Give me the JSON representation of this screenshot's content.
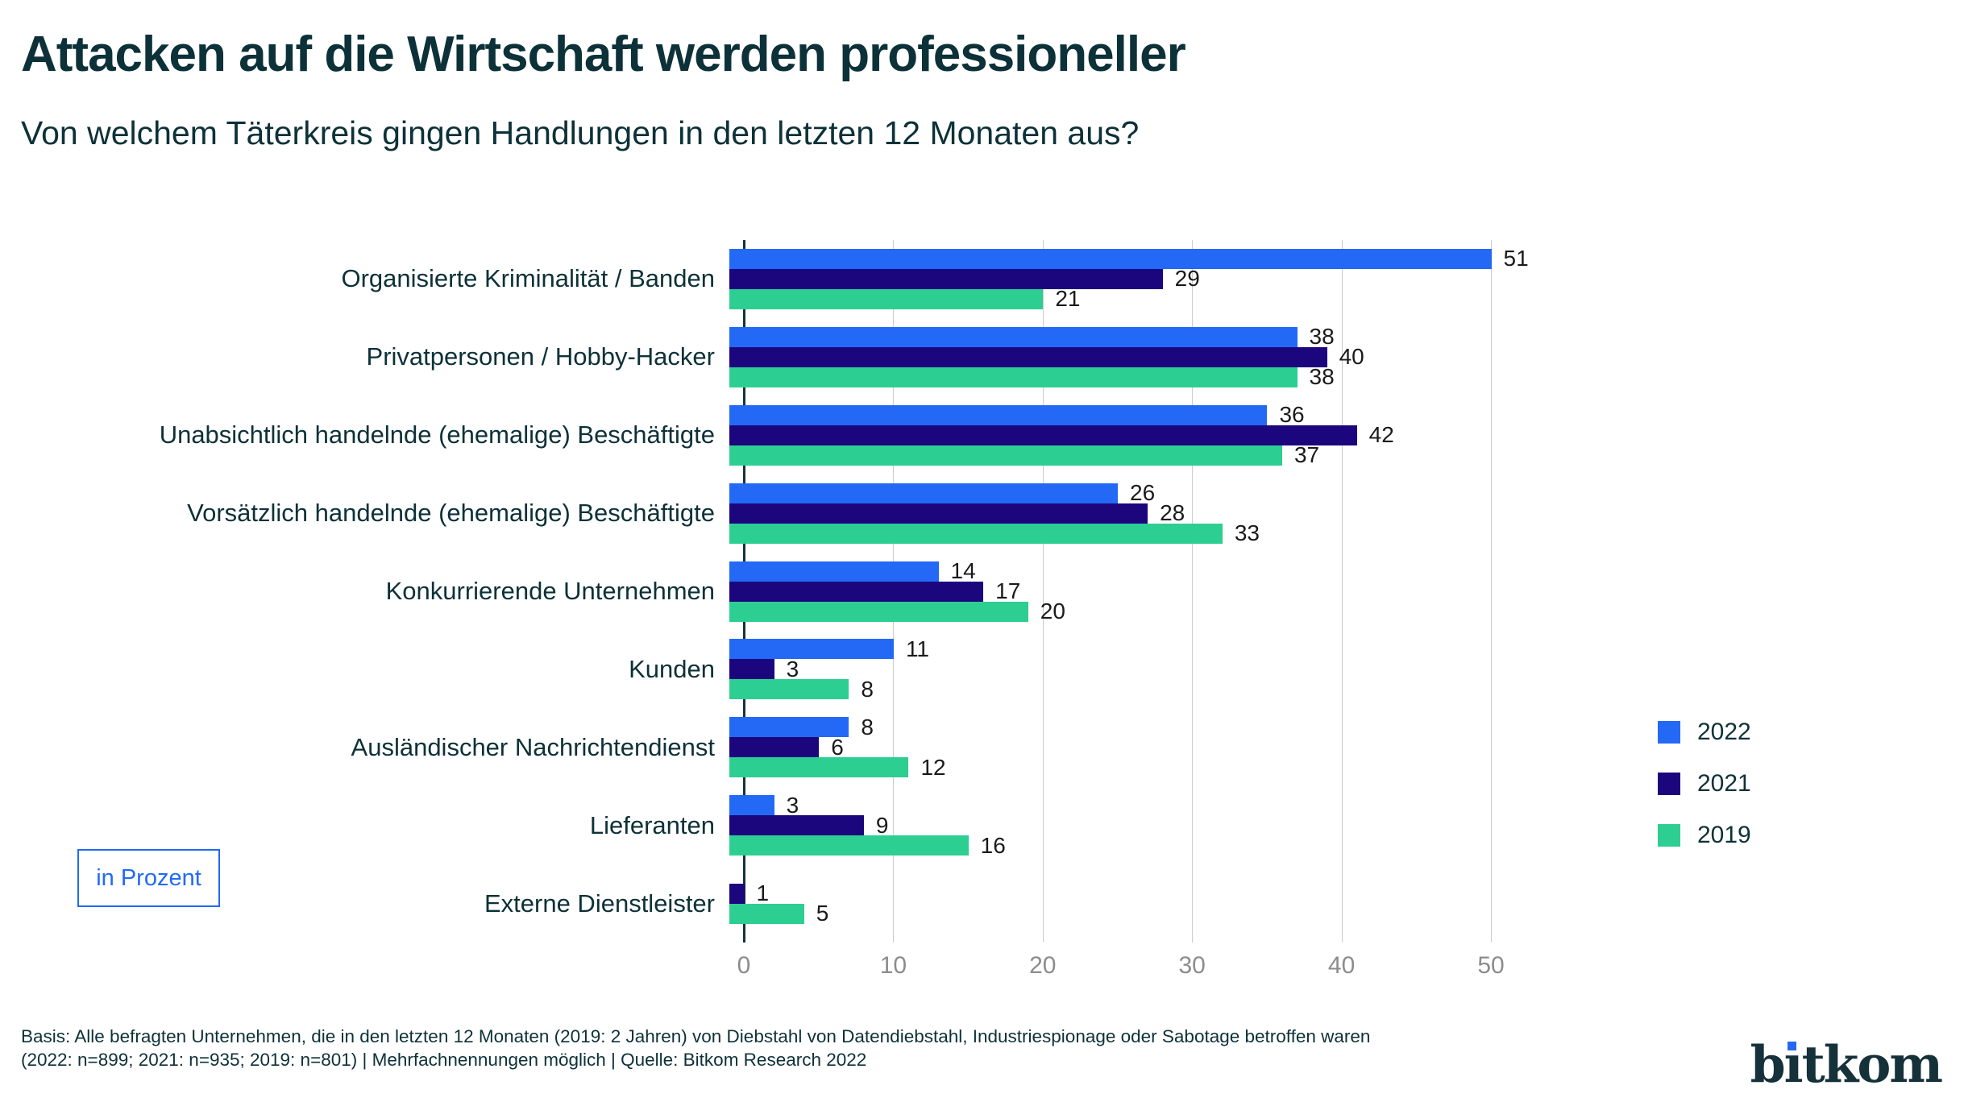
{
  "header": {
    "title": "Attacken auf die Wirtschaft werden professioneller",
    "subtitle": "Von welchem Täterkreis gingen Handlungen in den letzten 12 Monaten aus?"
  },
  "unit_label": "in Prozent",
  "chart_data": {
    "type": "bar",
    "orientation": "horizontal",
    "xlim": [
      0,
      50
    ],
    "x_ticks": [
      0,
      10,
      20,
      30,
      40,
      50
    ],
    "grid": true,
    "legend_position": "right",
    "value_unit": "Prozent",
    "categories": [
      "Organisierte Kriminalität / Banden",
      "Privatpersonen / Hobby-Hacker",
      "Unabsichtlich handelnde (ehemalige) Beschäftigte",
      "Vorsätzlich handelnde (ehemalige) Beschäftigte",
      "Konkurrierende Unternehmen",
      "Kunden",
      "Ausländischer Nachrichtendienst",
      "Lieferanten",
      "Externe Dienstleister"
    ],
    "series": [
      {
        "name": "2022",
        "color": "#2369f6",
        "values": [
          51,
          38,
          36,
          26,
          14,
          11,
          8,
          3,
          null
        ]
      },
      {
        "name": "2021",
        "color": "#1c067e",
        "values": [
          29,
          40,
          42,
          28,
          17,
          3,
          6,
          9,
          1
        ]
      },
      {
        "name": "2019",
        "color": "#2dce92",
        "values": [
          21,
          38,
          37,
          33,
          20,
          8,
          12,
          16,
          5
        ]
      }
    ]
  },
  "footer": {
    "line1": "Basis: Alle befragten Unternehmen, die in den letzten 12 Monaten (2019: 2 Jahren) von Diebstahl von Datendiebstahl, Industriespionage oder Sabotage betroffen waren",
    "line2": "(2022: n=899; 2021: n=935; 2019: n=801) | Mehrfachnennungen möglich | Quelle: Bitkom Research 2022"
  },
  "logo": {
    "text": "bitkom",
    "b": "b",
    "i": "ı",
    "rest": "tkom"
  },
  "colors": {
    "accent_blue": "#2369f6",
    "navy": "#1c067e",
    "green": "#2dce92",
    "heading_text": "#0d3138",
    "tick_gray": "#8c8c8c",
    "gridline": "#cccccc",
    "axis_line": "#15333b"
  }
}
